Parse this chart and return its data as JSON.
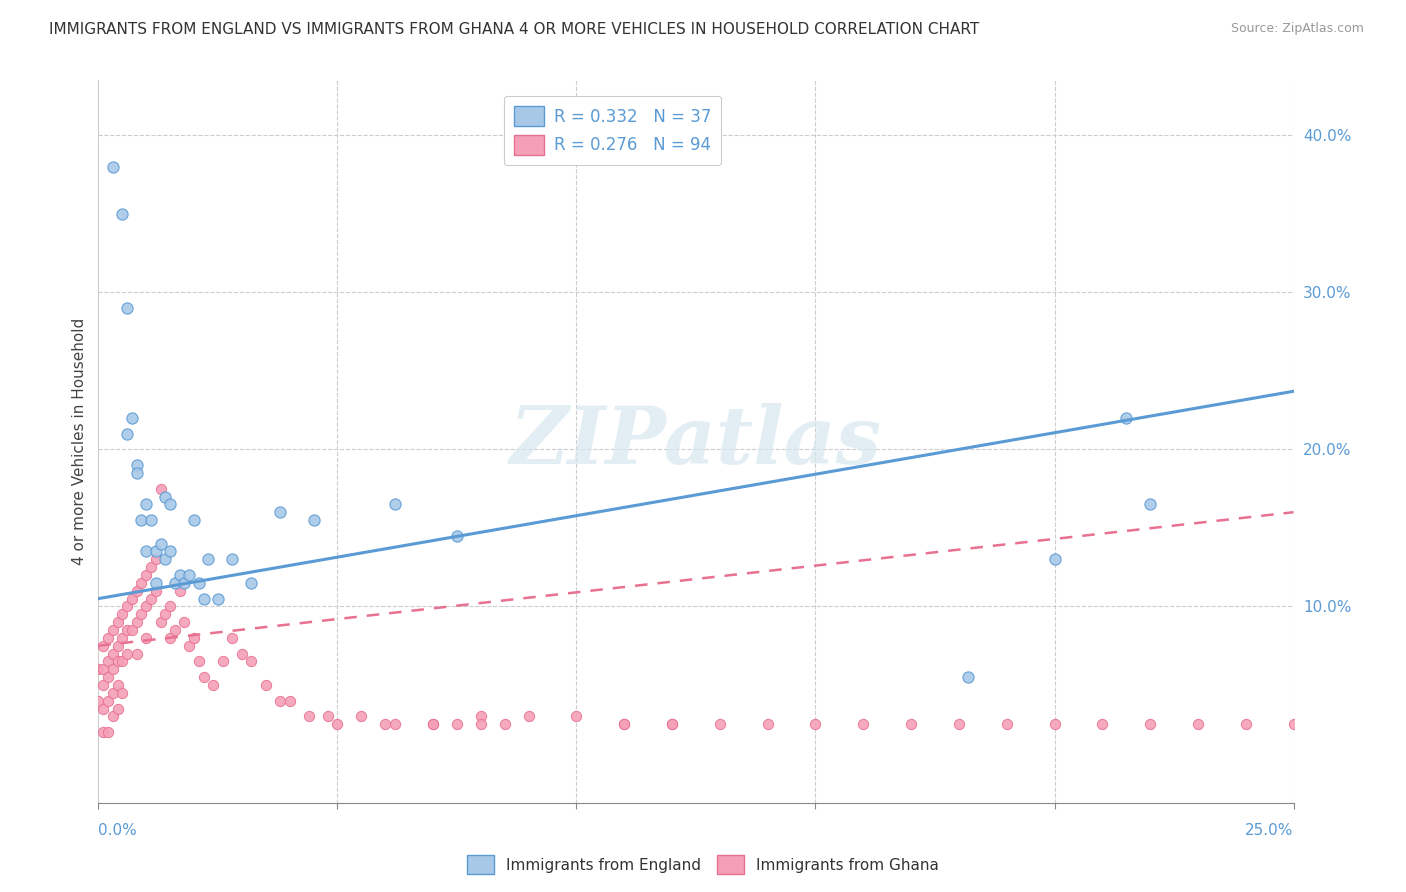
{
  "title": "IMMIGRANTS FROM ENGLAND VS IMMIGRANTS FROM GHANA 4 OR MORE VEHICLES IN HOUSEHOLD CORRELATION CHART",
  "source": "Source: ZipAtlas.com",
  "ylabel": "4 or more Vehicles in Household",
  "xlim": [
    0.0,
    0.25
  ],
  "ylim": [
    -0.025,
    0.435
  ],
  "R_england": 0.332,
  "N_england": 37,
  "R_ghana": 0.276,
  "N_ghana": 94,
  "color_england_fill": "#a8c8e8",
  "color_england_edge": "#5b9bd5",
  "color_ghana_fill": "#f4a0b8",
  "color_ghana_edge": "#e87090",
  "color_england_line": "#5b9bd5",
  "color_ghana_line": "#e87090",
  "watermark": "ZIPatlas",
  "eng_line_x0": 0.0,
  "eng_line_y0": 0.105,
  "eng_line_x1": 0.25,
  "eng_line_y1": 0.237,
  "gha_line_x0": 0.0,
  "gha_line_y0": 0.075,
  "gha_line_x1": 0.25,
  "gha_line_y1": 0.16,
  "england_x": [
    0.003,
    0.005,
    0.006,
    0.006,
    0.007,
    0.008,
    0.008,
    0.009,
    0.01,
    0.01,
    0.011,
    0.012,
    0.012,
    0.013,
    0.014,
    0.014,
    0.015,
    0.015,
    0.016,
    0.017,
    0.018,
    0.019,
    0.02,
    0.021,
    0.022,
    0.023,
    0.025,
    0.028,
    0.032,
    0.038,
    0.045,
    0.062,
    0.075,
    0.182,
    0.2,
    0.215,
    0.22
  ],
  "england_y": [
    0.38,
    0.35,
    0.29,
    0.21,
    0.22,
    0.19,
    0.185,
    0.155,
    0.165,
    0.135,
    0.155,
    0.135,
    0.115,
    0.14,
    0.17,
    0.13,
    0.165,
    0.135,
    0.115,
    0.12,
    0.115,
    0.12,
    0.155,
    0.115,
    0.105,
    0.13,
    0.105,
    0.13,
    0.115,
    0.16,
    0.155,
    0.165,
    0.145,
    0.055,
    0.13,
    0.22,
    0.165
  ],
  "ghana_x": [
    0.0,
    0.0,
    0.001,
    0.001,
    0.001,
    0.001,
    0.001,
    0.002,
    0.002,
    0.002,
    0.002,
    0.002,
    0.003,
    0.003,
    0.003,
    0.003,
    0.003,
    0.004,
    0.004,
    0.004,
    0.004,
    0.004,
    0.005,
    0.005,
    0.005,
    0.005,
    0.006,
    0.006,
    0.006,
    0.007,
    0.007,
    0.008,
    0.008,
    0.008,
    0.009,
    0.009,
    0.01,
    0.01,
    0.01,
    0.011,
    0.011,
    0.012,
    0.012,
    0.013,
    0.013,
    0.014,
    0.015,
    0.015,
    0.016,
    0.017,
    0.018,
    0.019,
    0.02,
    0.021,
    0.022,
    0.024,
    0.026,
    0.028,
    0.03,
    0.032,
    0.035,
    0.038,
    0.04,
    0.044,
    0.048,
    0.055,
    0.062,
    0.07,
    0.075,
    0.08,
    0.085,
    0.09,
    0.1,
    0.11,
    0.12,
    0.13,
    0.14,
    0.15,
    0.16,
    0.17,
    0.18,
    0.19,
    0.2,
    0.21,
    0.22,
    0.23,
    0.24,
    0.25,
    0.11,
    0.12,
    0.05,
    0.06,
    0.07,
    0.08
  ],
  "ghana_y": [
    0.06,
    0.04,
    0.075,
    0.06,
    0.05,
    0.035,
    0.02,
    0.08,
    0.065,
    0.055,
    0.04,
    0.02,
    0.085,
    0.07,
    0.06,
    0.045,
    0.03,
    0.09,
    0.075,
    0.065,
    0.05,
    0.035,
    0.095,
    0.08,
    0.065,
    0.045,
    0.1,
    0.085,
    0.07,
    0.105,
    0.085,
    0.11,
    0.09,
    0.07,
    0.115,
    0.095,
    0.12,
    0.1,
    0.08,
    0.125,
    0.105,
    0.13,
    0.11,
    0.175,
    0.09,
    0.095,
    0.1,
    0.08,
    0.085,
    0.11,
    0.09,
    0.075,
    0.08,
    0.065,
    0.055,
    0.05,
    0.065,
    0.08,
    0.07,
    0.065,
    0.05,
    0.04,
    0.04,
    0.03,
    0.03,
    0.03,
    0.025,
    0.025,
    0.025,
    0.03,
    0.025,
    0.03,
    0.03,
    0.025,
    0.025,
    0.025,
    0.025,
    0.025,
    0.025,
    0.025,
    0.025,
    0.025,
    0.025,
    0.025,
    0.025,
    0.025,
    0.025,
    0.025,
    0.025,
    0.025,
    0.025,
    0.025,
    0.025,
    0.025
  ]
}
